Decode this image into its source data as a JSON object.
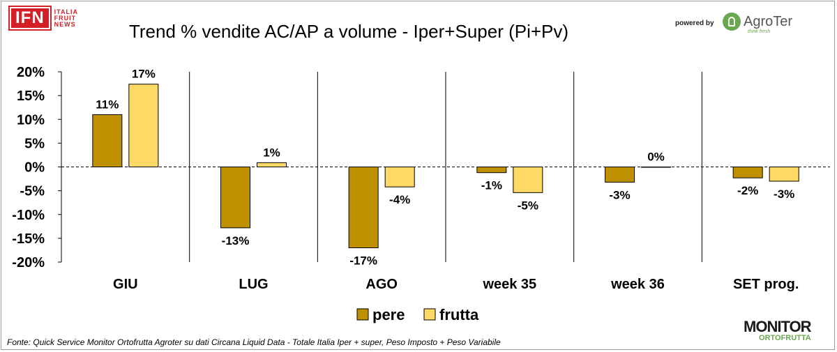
{
  "header": {
    "ifn_logo_main": "IFN",
    "ifn_logo_sub": [
      "ITALIA",
      "FRUIT",
      "NEWS"
    ],
    "powered_by": "powered by",
    "agroter_logo": "AgroTer",
    "agroter_tagline": "think fresh"
  },
  "footer": {
    "source": "Fonte: Quick Service Monitor Ortofrutta Agroter su dati Circana Liquid Data - Totale Italia Iper + super, Peso Imposto + Peso Variabile",
    "monitor_logo_main": "MONITOR",
    "monitor_logo_sub": "ORTOFRUTTA"
  },
  "colors": {
    "pere": "#bf9000",
    "frutta": "#ffd966",
    "grid_divider": "#000000"
  },
  "chart_data": {
    "type": "bar",
    "title": "Trend % vendite AC/AP a volume -  Iper+Super (Pi+Pv)",
    "categories": [
      "GIU",
      "LUG",
      "AGO",
      "week 35",
      "week 36",
      "SET prog."
    ],
    "series": [
      {
        "name": "pere",
        "values": [
          11.0,
          -12.8,
          -17.0,
          -1.2,
          -3.2,
          -2.3
        ],
        "labels": [
          "11%",
          "-13%",
          "-17%",
          "-1%",
          "-3%",
          "-2%"
        ]
      },
      {
        "name": "frutta",
        "values": [
          17.4,
          0.9,
          -4.2,
          -5.4,
          0.0,
          -3.0
        ],
        "labels": [
          "17%",
          "1%",
          "-4%",
          "-5%",
          "0%",
          "-3%"
        ]
      }
    ],
    "ylim": [
      -20,
      20
    ],
    "yticks": [
      20,
      15,
      10,
      5,
      0,
      -5,
      -10,
      -15,
      -20
    ],
    "ytick_labels": [
      "20%",
      "15%",
      "10%",
      "5%",
      "0%",
      "-5%",
      "-10%",
      "-15%",
      "-20%"
    ],
    "grid": false,
    "category_dividers": true,
    "zero_line": "dashed",
    "legend_position": "bottom-center"
  }
}
